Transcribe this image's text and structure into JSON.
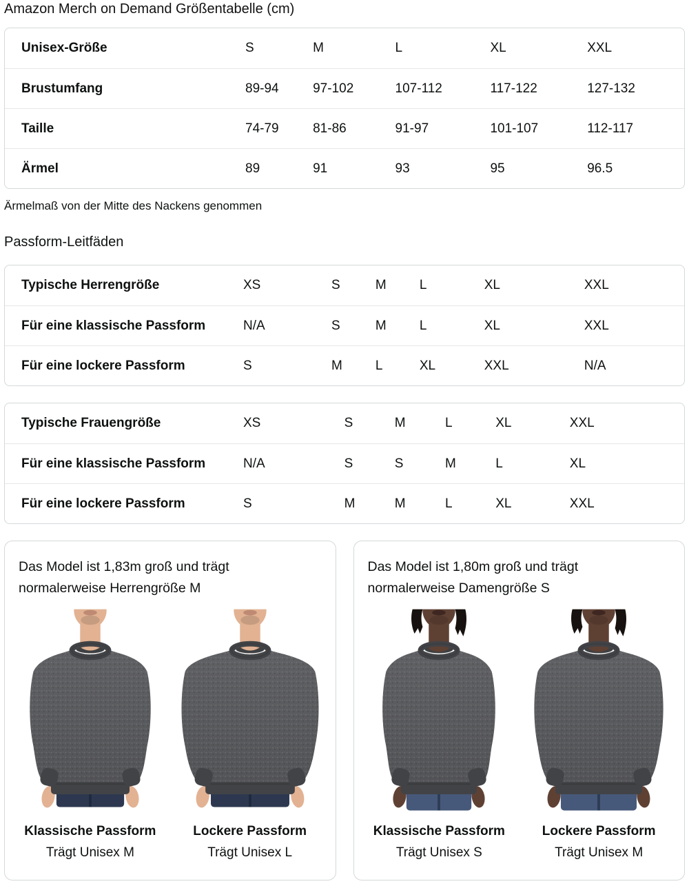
{
  "title": "Amazon Merch on Demand Größentabelle (cm)",
  "size_table": {
    "rows": [
      {
        "label": "Unisex-Größe",
        "values": [
          "S",
          "M",
          "L",
          "XL",
          "XXL"
        ]
      },
      {
        "label": "Brustumfang",
        "values": [
          "89-94",
          "97-102",
          "107-112",
          "117-122",
          "127-132"
        ]
      },
      {
        "label": "Taille",
        "values": [
          "74-79",
          "81-86",
          "91-97",
          "101-107",
          "112-117"
        ]
      },
      {
        "label": "Ärmel",
        "values": [
          "89",
          "91",
          "93",
          "95",
          "96.5"
        ]
      }
    ]
  },
  "note": "Ärmelmaß von der Mitte des Nackens genommen",
  "fit_guides": {
    "heading": "Passform-Leitfäden",
    "men_table": {
      "rows": [
        {
          "label": "Typische Herrengröße",
          "values": [
            "XS",
            "S",
            "M",
            "L",
            "XL",
            "XXL"
          ]
        },
        {
          "label": "Für eine klassische Passform",
          "values": [
            "N/A",
            "S",
            "M",
            "L",
            "XL",
            "XXL"
          ]
        },
        {
          "label": "Für eine lockere Passform",
          "values": [
            "S",
            "M",
            "L",
            "XL",
            "XXL",
            "N/A"
          ]
        }
      ]
    },
    "women_table": {
      "rows": [
        {
          "label": "Typische Frauengröße",
          "values": [
            "XS",
            "S",
            "M",
            "L",
            "XL",
            "XXL"
          ]
        },
        {
          "label": "Für eine klassische Passform",
          "values": [
            "N/A",
            "S",
            "S",
            "M",
            "L",
            "XL"
          ]
        },
        {
          "label": "Für eine lockere Passform",
          "values": [
            "S",
            "M",
            "M",
            "L",
            "XL",
            "XXL"
          ]
        }
      ]
    }
  },
  "model_cards": [
    {
      "description": "Das Model ist 1,83m groß und trägt normalerweise Herrengröße M",
      "figures": [
        {
          "fit_label": "Klassische Passform",
          "size_label": "Trägt Unisex M",
          "photo_id": "male-classic"
        },
        {
          "fit_label": "Lockere Passform",
          "size_label": "Trägt Unisex L",
          "photo_id": "male-loose"
        }
      ]
    },
    {
      "description": "Das Model ist 1,80m groß und trägt normalerweise Damengröße S",
      "figures": [
        {
          "fit_label": "Klassische Passform",
          "size_label": "Trägt Unisex S",
          "photo_id": "female-classic"
        },
        {
          "fit_label": "Lockere Passform",
          "size_label": "Trägt Unisex M",
          "photo_id": "female-loose"
        }
      ]
    }
  ],
  "colors": {
    "text": "#0f1111",
    "table_border": "#d5d9d9",
    "row_divider": "#e7e7e7",
    "card_border": "#d5d9d9",
    "sweatshirt": "#525356",
    "sweatshirt_light": "#606164",
    "sweatshirt_dark": "#424346",
    "jeans_male": "#2d3850",
    "jeans_female": "#47597a",
    "skin_male": "#e2b293",
    "skin_female": "#5f4134",
    "hair_female": "#17120f"
  }
}
